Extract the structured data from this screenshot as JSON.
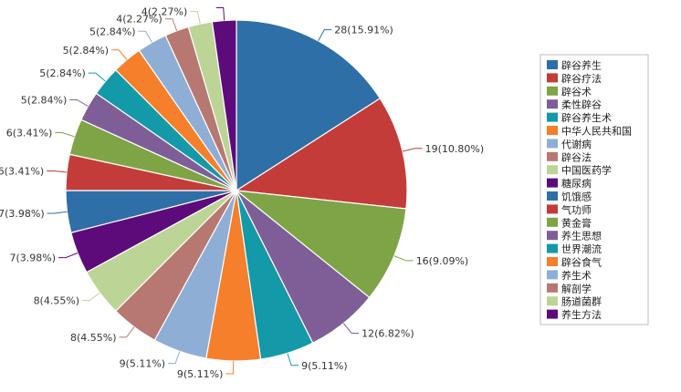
{
  "chart_data": {
    "type": "pie",
    "title": "",
    "legend_position": "right",
    "slices": [
      {
        "label": "辟谷养生",
        "value": 28,
        "percent": "15.91%",
        "display": "28(15.91%)",
        "color": "#2f6fa7"
      },
      {
        "label": "辟谷疗法",
        "value": 19,
        "percent": "10.80%",
        "display": "19(10.80%)",
        "color": "#c43c39"
      },
      {
        "label": "辟谷术",
        "value": 16,
        "percent": "9.09%",
        "display": "16(9.09%)",
        "color": "#7ea446"
      },
      {
        "label": "柔性辟谷",
        "value": 12,
        "percent": "6.82%",
        "display": "12(6.82%)",
        "color": "#7f5e98"
      },
      {
        "label": "辟谷养生术",
        "value": 9,
        "percent": "5.11%",
        "display": "9(5.11%)",
        "color": "#1499a9"
      },
      {
        "label": "中华人民共和国",
        "value": 9,
        "percent": "5.11%",
        "display": "9(5.11%)",
        "color": "#f57f2a"
      },
      {
        "label": "代谢病",
        "value": 9,
        "percent": "5.11%",
        "display": "9(5.11%)",
        "color": "#8eaed5"
      },
      {
        "label": "辟谷法",
        "value": 8,
        "percent": "4.55%",
        "display": "8(4.55%)",
        "color": "#b87872"
      },
      {
        "label": "中国医药学",
        "value": 8,
        "percent": "4.55%",
        "display": "8(4.55%)",
        "color": "#bcd597"
      },
      {
        "label": "糖尿病",
        "value": 7,
        "percent": "3.98%",
        "display": "7(3.98%)",
        "color": "#5d0b7a"
      },
      {
        "label": "饥饿感",
        "value": 7,
        "percent": "3.98%",
        "display": "7(3.98%)",
        "color": "#2f6fa7"
      },
      {
        "label": "气功师",
        "value": 6,
        "percent": "3.41%",
        "display": "6(3.41%)",
        "color": "#c43c39"
      },
      {
        "label": "黄金膏",
        "value": 6,
        "percent": "3.41%",
        "display": "6(3.41%)",
        "color": "#7ea446"
      },
      {
        "label": "养生思想",
        "value": 5,
        "percent": "2.84%",
        "display": "5(2.84%)",
        "color": "#7f5e98"
      },
      {
        "label": "世界潮流",
        "value": 5,
        "percent": "2.84%",
        "display": "5(2.84%)",
        "color": "#1499a9"
      },
      {
        "label": "辟谷食气",
        "value": 5,
        "percent": "2.84%",
        "display": "5(2.84%)",
        "color": "#f57f2a"
      },
      {
        "label": "养生术",
        "value": 5,
        "percent": "2.84%",
        "display": "5(2.84%)",
        "color": "#8eaed5"
      },
      {
        "label": "解剖学",
        "value": 4,
        "percent": "2.27%",
        "display": "4(2.27%)",
        "color": "#b87872"
      },
      {
        "label": "肠道菌群",
        "value": 4,
        "percent": "2.27%",
        "display": "4(2.27%)",
        "color": "#bcd597"
      },
      {
        "label": "养生方法",
        "value": 4,
        "percent": "2.27%",
        "display": "",
        "color": "#5d0b7a"
      }
    ]
  }
}
